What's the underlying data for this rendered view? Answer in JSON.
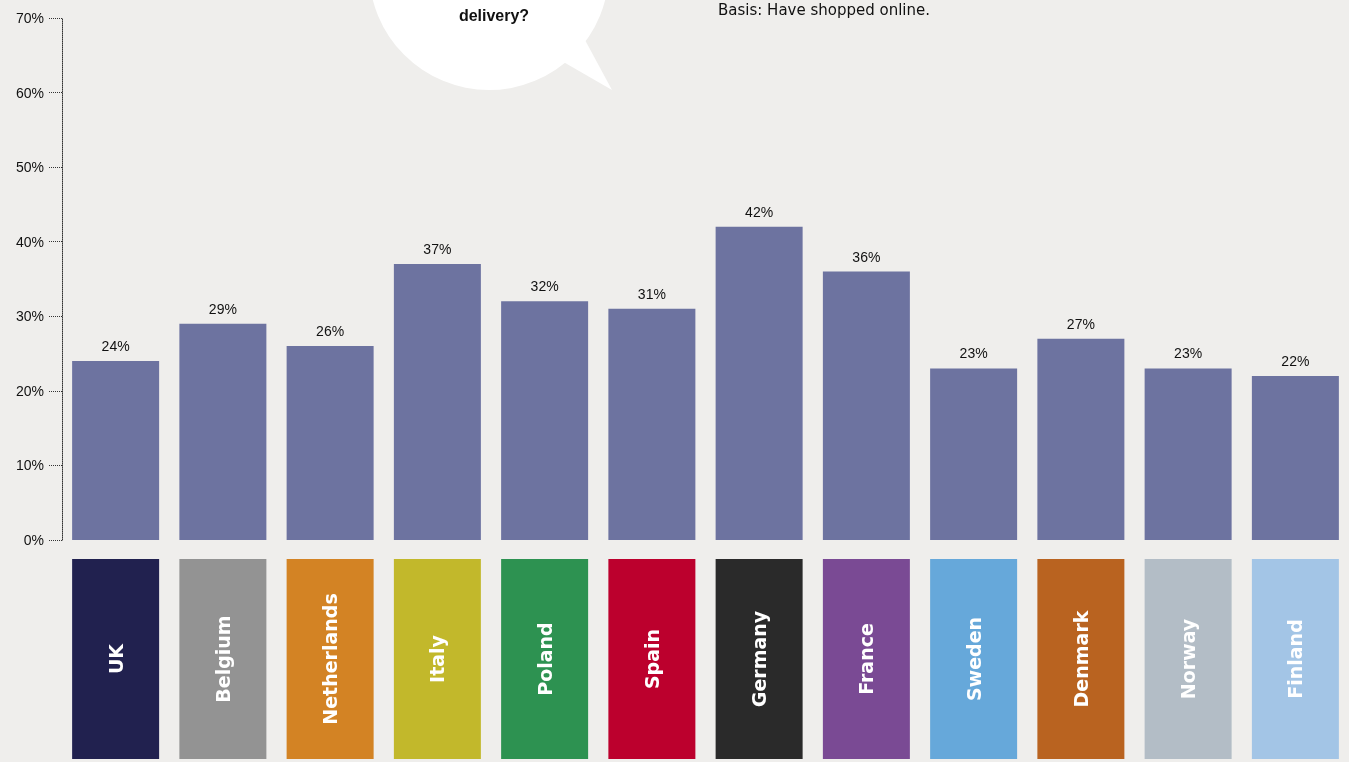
{
  "chart_data": {
    "type": "bar",
    "title": "delivery?",
    "annotations": [
      "Basis: Have shopped online."
    ],
    "categories": [
      "UK",
      "Belgium",
      "Netherlands",
      "Italy",
      "Poland",
      "Spain",
      "Germany",
      "France",
      "Sweden",
      "Denmark",
      "Norway",
      "Finland"
    ],
    "values": [
      24,
      29,
      26,
      37,
      32,
      31,
      42,
      36,
      23,
      27,
      23,
      22
    ],
    "value_labels": [
      "24%",
      "29%",
      "26%",
      "37%",
      "32%",
      "31%",
      "42%",
      "36%",
      "23%",
      "27%",
      "23%",
      "22%"
    ],
    "color": "#6d73a0",
    "ylim": [
      0,
      70
    ],
    "yticks": [
      {
        "value": 0,
        "label": "0%"
      },
      {
        "value": 10,
        "label": "10%"
      },
      {
        "value": 20,
        "label": "20%"
      },
      {
        "value": 30,
        "label": "30%"
      },
      {
        "value": 40,
        "label": "40%"
      },
      {
        "value": 50,
        "label": "50%"
      },
      {
        "value": 60,
        "label": "60%"
      },
      {
        "value": 70,
        "label": "70%"
      }
    ],
    "grid": false
  }
}
